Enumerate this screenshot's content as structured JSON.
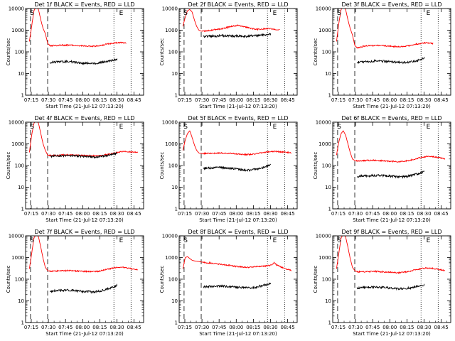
{
  "figure": {
    "colors": {
      "events": "#000000",
      "lld": "#ff0000",
      "axis": "#000000",
      "background": "#ffffff"
    }
  },
  "chart_data": [
    {
      "type": "line",
      "title": "Det 1f BLACK = Events, RED = LLD",
      "xlabel": "Start Time (21-Jul-12 07:13:20)",
      "ylabel": "Counts/sec",
      "x_tick_labels": [
        "07:15",
        "07:30",
        "07:45",
        "08:00",
        "08:15",
        "08:30",
        "08:45"
      ],
      "y_tick_labels": [
        "1",
        "10",
        "100",
        "1000",
        "10000"
      ],
      "xlim_min": [
        -3.3,
        100
      ],
      "ylim": [
        1,
        10000
      ],
      "log_y": true,
      "markers": [
        {
          "label": "E",
          "x": 78
        },
        {
          "label": "S",
          "x": 0
        }
      ],
      "vlines_dashed_min": [
        1,
        16
      ],
      "vlines_dotted_min": [
        74,
        89
      ],
      "series": [
        {
          "name": "LLD",
          "color": "#ff0000",
          "x": [
            0,
            2,
            4,
            6,
            8,
            10,
            12,
            14,
            16,
            18,
            25,
            35,
            45,
            55,
            60,
            65,
            70,
            75,
            80,
            85
          ],
          "y": [
            300,
            1500,
            8000,
            12000,
            9000,
            3000,
            1200,
            700,
            250,
            190,
            200,
            205,
            190,
            180,
            185,
            210,
            240,
            260,
            270,
            250
          ]
        },
        {
          "name": "Events",
          "color": "#000000",
          "x": [
            18,
            25,
            35,
            45,
            55,
            60,
            65,
            70,
            74,
            77
          ],
          "y": [
            33,
            35,
            36,
            30,
            29,
            30,
            34,
            38,
            42,
            45
          ]
        }
      ]
    },
    {
      "type": "line",
      "title": "Det 2f BLACK = Events, RED = LLD",
      "xlabel": "Start Time (21-Jul-12 07:13:20)",
      "ylabel": "Counts/sec",
      "x_tick_labels": [
        "07:15",
        "07:30",
        "07:45",
        "08:00",
        "08:15",
        "08:30",
        "08:45"
      ],
      "y_tick_labels": [
        "1",
        "10",
        "100",
        "1000",
        "10000"
      ],
      "xlim_min": [
        -3.3,
        100
      ],
      "ylim": [
        1,
        10000
      ],
      "log_y": true,
      "markers": [
        {
          "label": "E",
          "x": 78
        },
        {
          "label": "S",
          "x": 0
        }
      ],
      "vlines_dashed_min": [
        1,
        16
      ],
      "vlines_dotted_min": [
        74,
        89
      ],
      "series": [
        {
          "name": "LLD",
          "color": "#ff0000",
          "x": [
            0,
            2,
            4,
            6,
            8,
            10,
            12,
            14,
            16,
            18,
            25,
            35,
            42,
            48,
            55,
            60,
            65,
            70,
            75,
            80,
            85
          ],
          "y": [
            1500,
            4000,
            8000,
            9000,
            7000,
            3000,
            1500,
            1000,
            900,
            900,
            1000,
            1200,
            1500,
            1700,
            1400,
            1200,
            1100,
            1150,
            1200,
            1100,
            1050
          ]
        },
        {
          "name": "Events",
          "color": "#000000",
          "x": [
            18,
            25,
            35,
            45,
            55,
            65,
            70,
            77
          ],
          "y": [
            520,
            530,
            560,
            540,
            520,
            560,
            600,
            650
          ]
        }
      ]
    },
    {
      "type": "line",
      "title": "Det 3f BLACK = Events, RED = LLD",
      "xlabel": "Start Time (21-Jul-12 07:13:20)",
      "ylabel": "Counts/sec",
      "x_tick_labels": [
        "07:15",
        "07:30",
        "07:45",
        "08:00",
        "08:15",
        "08:30",
        "08:45"
      ],
      "y_tick_labels": [
        "1",
        "10",
        "100",
        "1000",
        "10000"
      ],
      "xlim_min": [
        -3.3,
        100
      ],
      "ylim": [
        1,
        10000
      ],
      "log_y": true,
      "markers": [
        {
          "label": "E",
          "x": 78
        },
        {
          "label": "S",
          "x": 0
        }
      ],
      "vlines_dashed_min": [
        1,
        16
      ],
      "vlines_dotted_min": [
        74,
        89
      ],
      "series": [
        {
          "name": "LLD",
          "color": "#ff0000",
          "x": [
            0,
            2,
            4,
            6,
            8,
            10,
            12,
            14,
            16,
            18,
            25,
            35,
            45,
            55,
            60,
            65,
            70,
            75,
            80,
            85
          ],
          "y": [
            300,
            2000,
            9000,
            12000,
            9000,
            3000,
            1200,
            600,
            200,
            150,
            190,
            200,
            185,
            170,
            180,
            195,
            230,
            250,
            260,
            235
          ]
        },
        {
          "name": "Events",
          "color": "#000000",
          "x": [
            18,
            25,
            35,
            45,
            55,
            60,
            65,
            70,
            74,
            77
          ],
          "y": [
            33,
            35,
            38,
            36,
            33,
            32,
            34,
            38,
            45,
            55
          ]
        }
      ]
    },
    {
      "type": "line",
      "title": "Det 4f BLACK = Events, RED = LLD",
      "xlabel": "Start Time (21-Jul-12 07:13:20)",
      "ylabel": "Counts/sec",
      "x_tick_labels": [
        "07:15",
        "07:30",
        "07:45",
        "08:00",
        "08:15",
        "08:30",
        "08:45"
      ],
      "y_tick_labels": [
        "1",
        "10",
        "100",
        "1000",
        "10000"
      ],
      "xlim_min": [
        -3.3,
        100
      ],
      "ylim": [
        1,
        10000
      ],
      "log_y": true,
      "markers": [
        {
          "label": "E",
          "x": 78
        },
        {
          "label": "S",
          "x": 0
        }
      ],
      "vlines_dashed_min": [
        1,
        16
      ],
      "vlines_dotted_min": [
        74,
        89
      ],
      "series": [
        {
          "name": "LLD",
          "color": "#ff0000",
          "x": [
            0,
            2,
            4,
            6,
            8,
            10,
            12,
            14,
            16,
            18,
            25,
            35,
            45,
            55,
            60,
            65,
            70,
            75,
            80,
            85,
            90,
            95
          ],
          "y": [
            400,
            2500,
            9000,
            12000,
            9000,
            3000,
            1000,
            500,
            300,
            290,
            300,
            310,
            300,
            280,
            280,
            300,
            340,
            380,
            430,
            450,
            420,
            390
          ]
        },
        {
          "name": "Events",
          "color": "#000000",
          "x": [
            18,
            25,
            35,
            45,
            55,
            60,
            65,
            70,
            74,
            77
          ],
          "y": [
            270,
            280,
            285,
            270,
            250,
            250,
            270,
            300,
            340,
            370
          ]
        }
      ]
    },
    {
      "type": "line",
      "title": "Det 5f BLACK = Events, RED = LLD",
      "xlabel": "Start Time (21-Jul-12 07:13:20)",
      "ylabel": "Counts/sec",
      "x_tick_labels": [
        "07:15",
        "07:30",
        "07:45",
        "08:00",
        "08:15",
        "08:30",
        "08:45"
      ],
      "y_tick_labels": [
        "1",
        "10",
        "100",
        "1000",
        "10000"
      ],
      "xlim_min": [
        -3.3,
        100
      ],
      "ylim": [
        1,
        10000
      ],
      "log_y": true,
      "markers": [
        {
          "label": "E",
          "x": 78
        },
        {
          "label": "S",
          "x": 0
        }
      ],
      "vlines_dashed_min": [
        1,
        16
      ],
      "vlines_dotted_min": [
        74,
        89
      ],
      "series": [
        {
          "name": "LLD",
          "color": "#ff0000",
          "x": [
            0,
            2,
            4,
            6,
            8,
            10,
            12,
            14,
            16,
            18,
            25,
            35,
            45,
            55,
            60,
            65,
            70,
            75,
            80,
            85,
            90,
            95
          ],
          "y": [
            500,
            1500,
            3000,
            4000,
            2000,
            900,
            500,
            380,
            360,
            360,
            370,
            380,
            350,
            320,
            330,
            360,
            400,
            430,
            450,
            430,
            410,
            390
          ]
        },
        {
          "name": "Events",
          "color": "#000000",
          "x": [
            18,
            25,
            35,
            45,
            55,
            60,
            65,
            70,
            74,
            77
          ],
          "y": [
            75,
            78,
            80,
            72,
            60,
            62,
            70,
            80,
            95,
            105
          ]
        }
      ]
    },
    {
      "type": "line",
      "title": "Det 6f BLACK = Events, RED = LLD",
      "xlabel": "Start Time (21-Jul-12 07:13:20)",
      "ylabel": "Counts/sec",
      "x_tick_labels": [
        "07:15",
        "07:30",
        "07:45",
        "08:00",
        "08:15",
        "08:30",
        "08:45"
      ],
      "y_tick_labels": [
        "1",
        "10",
        "100",
        "1000",
        "10000"
      ],
      "xlim_min": [
        -3.3,
        100
      ],
      "ylim": [
        1,
        10000
      ],
      "log_y": true,
      "markers": [
        {
          "label": "E",
          "x": 78
        },
        {
          "label": "S",
          "x": 0
        }
      ],
      "vlines_dashed_min": [
        1,
        16
      ],
      "vlines_dotted_min": [
        74,
        89
      ],
      "series": [
        {
          "name": "LLD",
          "color": "#ff0000",
          "x": [
            0,
            2,
            4,
            6,
            8,
            10,
            12,
            14,
            16,
            18,
            25,
            35,
            45,
            55,
            60,
            65,
            70,
            75,
            80,
            85,
            90,
            95
          ],
          "y": [
            300,
            1200,
            3000,
            4000,
            2500,
            1000,
            400,
            200,
            170,
            160,
            170,
            175,
            160,
            150,
            160,
            180,
            210,
            240,
            270,
            260,
            230,
            200
          ]
        },
        {
          "name": "Events",
          "color": "#000000",
          "x": [
            18,
            25,
            35,
            45,
            55,
            60,
            65,
            70,
            74,
            77
          ],
          "y": [
            32,
            33,
            35,
            33,
            30,
            31,
            34,
            40,
            48,
            55
          ]
        }
      ]
    },
    {
      "type": "line",
      "title": "Det 7f BLACK = Events, RED = LLD",
      "xlabel": "Start Time (21-Jul-12 07:13:20)",
      "ylabel": "Counts/sec",
      "x_tick_labels": [
        "07:15",
        "07:30",
        "07:45",
        "08:00",
        "08:15",
        "08:30",
        "08:45"
      ],
      "y_tick_labels": [
        "1",
        "10",
        "100",
        "1000",
        "10000"
      ],
      "xlim_min": [
        -3.3,
        100
      ],
      "ylim": [
        1,
        10000
      ],
      "log_y": true,
      "markers": [
        {
          "label": "E",
          "x": 78
        },
        {
          "label": "S",
          "x": 0
        }
      ],
      "vlines_dashed_min": [
        1,
        16
      ],
      "vlines_dotted_min": [
        74,
        89
      ],
      "series": [
        {
          "name": "LLD",
          "color": "#ff0000",
          "x": [
            0,
            2,
            4,
            6,
            8,
            10,
            12,
            14,
            16,
            18,
            25,
            35,
            45,
            55,
            60,
            65,
            70,
            75,
            80,
            85,
            90,
            95
          ],
          "y": [
            300,
            1500,
            8000,
            12000,
            9000,
            3000,
            900,
            350,
            250,
            230,
            240,
            250,
            235,
            220,
            230,
            260,
            300,
            340,
            360,
            340,
            300,
            270
          ]
        },
        {
          "name": "Events",
          "color": "#000000",
          "x": [
            18,
            25,
            35,
            45,
            55,
            60,
            65,
            70,
            74,
            77
          ],
          "y": [
            28,
            30,
            31,
            28,
            26,
            27,
            31,
            38,
            45,
            52
          ]
        }
      ]
    },
    {
      "type": "line",
      "title": "Det 8f BLACK = Events, RED = LLD",
      "xlabel": "Start Time (21-Jul-12 07:13:20)",
      "ylabel": "Counts/sec",
      "x_tick_labels": [
        "07:15",
        "07:30",
        "07:45",
        "08:00",
        "08:15",
        "08:30",
        "08:45"
      ],
      "y_tick_labels": [
        "1",
        "10",
        "100",
        "1000",
        "10000"
      ],
      "xlim_min": [
        -3.3,
        100
      ],
      "ylim": [
        1,
        10000
      ],
      "log_y": true,
      "markers": [
        {
          "label": "E",
          "x": 78
        },
        {
          "label": "S",
          "x": 0
        }
      ],
      "vlines_dashed_min": [
        1,
        16
      ],
      "vlines_dotted_min": [
        74,
        89
      ],
      "series": [
        {
          "name": "LLD",
          "color": "#ff0000",
          "x": [
            0,
            2,
            4,
            6,
            8,
            10,
            14,
            18,
            25,
            35,
            45,
            55,
            65,
            70,
            75,
            78,
            80,
            82,
            85,
            90,
            95
          ],
          "y": [
            300,
            1000,
            1100,
            900,
            750,
            700,
            650,
            600,
            550,
            480,
            400,
            350,
            380,
            400,
            420,
            450,
            600,
            450,
            380,
            300,
            250
          ]
        },
        {
          "name": "Events",
          "color": "#000000",
          "x": [
            18,
            25,
            35,
            45,
            55,
            60,
            65,
            70,
            74,
            77
          ],
          "y": [
            45,
            46,
            48,
            44,
            40,
            40,
            44,
            52,
            58,
            65
          ]
        }
      ]
    },
    {
      "type": "line",
      "title": "Det 9f BLACK = Events, RED = LLD",
      "xlabel": "Start Time (21-Jul-12 07:13:20)",
      "ylabel": "Counts/sec",
      "x_tick_labels": [
        "07:15",
        "07:30",
        "07:45",
        "08:00",
        "08:15",
        "08:30",
        "08:45"
      ],
      "y_tick_labels": [
        "1",
        "10",
        "100",
        "1000",
        "10000"
      ],
      "xlim_min": [
        -3.3,
        100
      ],
      "ylim": [
        1,
        10000
      ],
      "log_y": true,
      "markers": [
        {
          "label": "E",
          "x": 78
        },
        {
          "label": "S",
          "x": 0
        }
      ],
      "vlines_dashed_min": [
        1,
        16
      ],
      "vlines_dotted_min": [
        74,
        89
      ],
      "series": [
        {
          "name": "LLD",
          "color": "#ff0000",
          "x": [
            0,
            2,
            4,
            6,
            8,
            10,
            12,
            14,
            16,
            18,
            25,
            35,
            45,
            55,
            60,
            65,
            70,
            75,
            80,
            85,
            90,
            95
          ],
          "y": [
            300,
            1500,
            8000,
            12000,
            9000,
            3000,
            900,
            350,
            250,
            220,
            220,
            230,
            210,
            200,
            210,
            240,
            280,
            310,
            330,
            310,
            280,
            250
          ]
        },
        {
          "name": "Events",
          "color": "#000000",
          "x": [
            18,
            25,
            35,
            45,
            55,
            60,
            65,
            70,
            74,
            77
          ],
          "y": [
            40,
            42,
            44,
            40,
            36,
            37,
            40,
            46,
            52,
            56
          ]
        }
      ]
    }
  ]
}
